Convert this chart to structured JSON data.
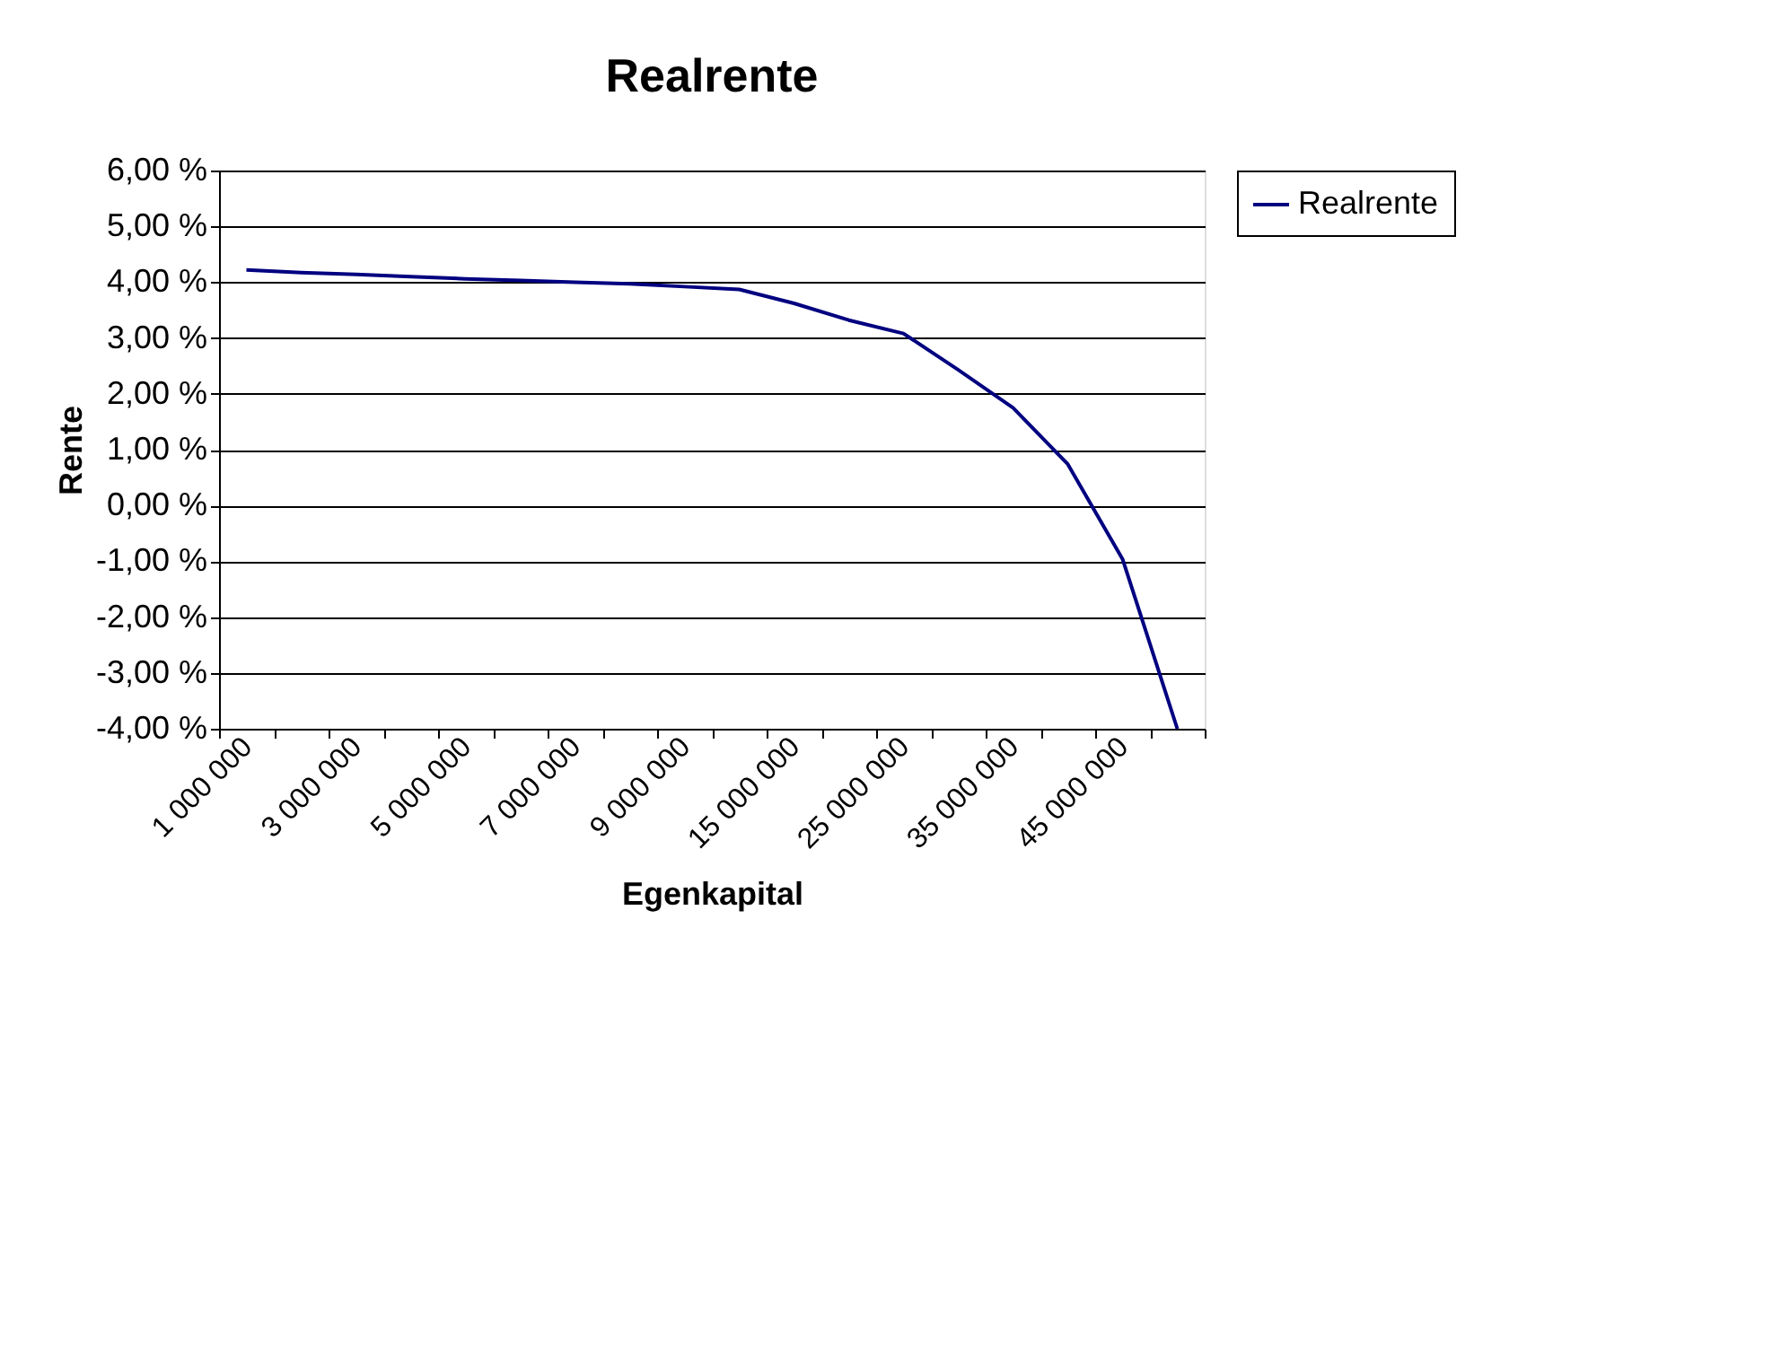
{
  "chart_data": {
    "type": "line",
    "title": "Realrente",
    "xlabel": "Egenkapital",
    "ylabel": "Rente",
    "categories": [
      "1 000 000",
      null,
      "3 000 000",
      null,
      "5 000 000",
      null,
      "7 000 000",
      null,
      "9 000 000",
      null,
      "15 000 000",
      null,
      "25 000 000",
      null,
      "35 000 000",
      null,
      "45 000 000",
      null
    ],
    "series": [
      {
        "name": "Realrente",
        "color": "#000080",
        "values": [
          4.22,
          4.17,
          4.14,
          4.1,
          4.06,
          4.03,
          4.0,
          3.97,
          3.92,
          3.87,
          3.62,
          3.32,
          3.08,
          2.43,
          1.75,
          0.74,
          -0.96,
          -4.0
        ]
      }
    ],
    "ylim": [
      -4,
      6
    ],
    "yticks": [
      {
        "value": -4,
        "label": "-4,00 %"
      },
      {
        "value": -3,
        "label": "-3,00 %"
      },
      {
        "value": -2,
        "label": "-2,00 %"
      },
      {
        "value": -1,
        "label": "-1,00 %"
      },
      {
        "value": 0,
        "label": "0,00 %"
      },
      {
        "value": 1,
        "label": "1,00 %"
      },
      {
        "value": 2,
        "label": "2,00 %"
      },
      {
        "value": 3,
        "label": "3,00 %"
      },
      {
        "value": 4,
        "label": "4,00 %"
      },
      {
        "value": 5,
        "label": "5,00 %"
      },
      {
        "value": 6,
        "label": "6,00 %"
      }
    ],
    "grid": "y",
    "legend": "right",
    "marker": "none",
    "line_style": "solid"
  }
}
